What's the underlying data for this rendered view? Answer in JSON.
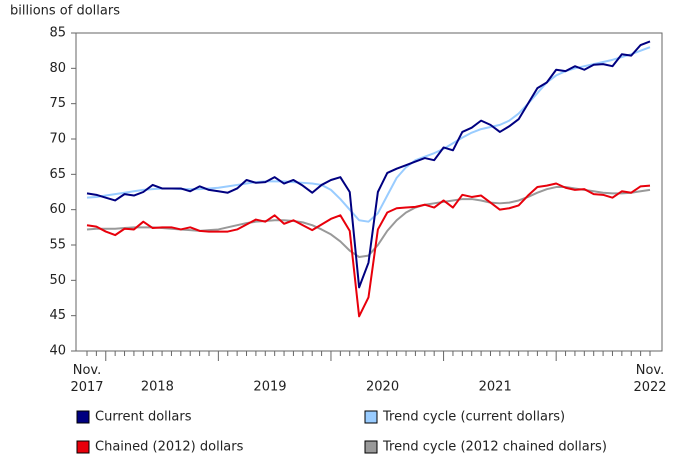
{
  "chart_data": {
    "type": "line",
    "title": "billions of dollars",
    "categories": [
      "Nov. 2017",
      null,
      null,
      null,
      null,
      null,
      null,
      "2018",
      null,
      null,
      null,
      null,
      null,
      null,
      null,
      null,
      null,
      null,
      null,
      "2019",
      null,
      null,
      null,
      null,
      null,
      null,
      null,
      null,
      null,
      null,
      null,
      "2020",
      null,
      null,
      null,
      null,
      null,
      null,
      null,
      null,
      null,
      null,
      null,
      "2021",
      null,
      null,
      null,
      null,
      null,
      null,
      null,
      null,
      null,
      null,
      null,
      null,
      null,
      null,
      null,
      null,
      "Nov. 2022"
    ],
    "series": [
      {
        "name": "Current dollars",
        "color": "#000080",
        "values": [
          62.3,
          62.1,
          61.7,
          61.3,
          62.2,
          62.0,
          62.5,
          63.5,
          63.0,
          63.0,
          63.0,
          62.6,
          63.3,
          62.8,
          62.6,
          62.4,
          63.0,
          64.2,
          63.8,
          63.9,
          64.6,
          63.7,
          64.2,
          63.4,
          62.4,
          63.5,
          64.2,
          64.6,
          62.5,
          49.0,
          52.5,
          62.5,
          65.2,
          65.8,
          66.3,
          66.8,
          67.3,
          67.0,
          68.8,
          68.4,
          71.0,
          71.6,
          72.6,
          72.0,
          71.0,
          71.8,
          72.8,
          75.0,
          77.2,
          78.0,
          79.8,
          79.6,
          80.3,
          79.8,
          80.5,
          80.6,
          80.3,
          82.0,
          81.8,
          83.3,
          83.8
        ]
      },
      {
        "name": "Trend cycle (current dollars)",
        "color": "#99ccff",
        "values": [
          61.7,
          61.8,
          62.0,
          62.2,
          62.4,
          62.6,
          62.8,
          62.9,
          63.0,
          63.0,
          62.9,
          62.9,
          62.9,
          63.0,
          63.1,
          63.3,
          63.5,
          63.7,
          63.9,
          64.0,
          64.0,
          64.0,
          63.9,
          63.8,
          63.7,
          63.5,
          62.8,
          61.5,
          60.0,
          58.5,
          58.3,
          59.5,
          62.0,
          64.5,
          66.0,
          67.0,
          67.5,
          68.0,
          68.6,
          69.4,
          70.2,
          70.9,
          71.4,
          71.7,
          72.0,
          72.6,
          73.6,
          75.0,
          76.5,
          78.0,
          79.0,
          79.6,
          80.0,
          80.3,
          80.6,
          80.9,
          81.2,
          81.6,
          82.0,
          82.5,
          83.0
        ]
      },
      {
        "name": "Chained (2012) dollars",
        "color": "#e8000b",
        "values": [
          57.8,
          57.6,
          56.9,
          56.4,
          57.3,
          57.2,
          58.3,
          57.4,
          57.5,
          57.5,
          57.2,
          57.5,
          57.0,
          56.9,
          56.9,
          56.9,
          57.2,
          57.9,
          58.6,
          58.3,
          59.2,
          58.0,
          58.5,
          57.8,
          57.1,
          57.9,
          58.7,
          59.2,
          57.0,
          44.9,
          47.6,
          57.2,
          59.6,
          60.2,
          60.3,
          60.4,
          60.7,
          60.3,
          61.3,
          60.3,
          62.1,
          61.8,
          62.0,
          61.0,
          60.0,
          60.2,
          60.6,
          62.0,
          63.2,
          63.4,
          63.7,
          63.1,
          62.8,
          62.9,
          62.2,
          62.1,
          61.7,
          62.6,
          62.4,
          63.3,
          63.4
        ]
      },
      {
        "name": "Trend cycle (2012 chained dollars)",
        "color": "#999999",
        "values": [
          57.2,
          57.3,
          57.3,
          57.3,
          57.4,
          57.5,
          57.5,
          57.5,
          57.4,
          57.3,
          57.2,
          57.1,
          57.0,
          57.1,
          57.2,
          57.5,
          57.8,
          58.1,
          58.3,
          58.4,
          58.5,
          58.5,
          58.4,
          58.2,
          57.8,
          57.2,
          56.5,
          55.5,
          54.2,
          53.3,
          53.5,
          55.0,
          57.0,
          58.5,
          59.6,
          60.3,
          60.7,
          60.9,
          61.1,
          61.3,
          61.5,
          61.5,
          61.3,
          61.0,
          60.9,
          61.0,
          61.3,
          61.8,
          62.4,
          62.9,
          63.2,
          63.2,
          63.0,
          62.8,
          62.6,
          62.4,
          62.3,
          62.3,
          62.4,
          62.6,
          62.8
        ]
      }
    ],
    "ylim": [
      40,
      85
    ],
    "yticks": [
      40,
      45,
      50,
      55,
      60,
      65,
      70,
      75,
      80,
      85
    ],
    "grid": false
  }
}
